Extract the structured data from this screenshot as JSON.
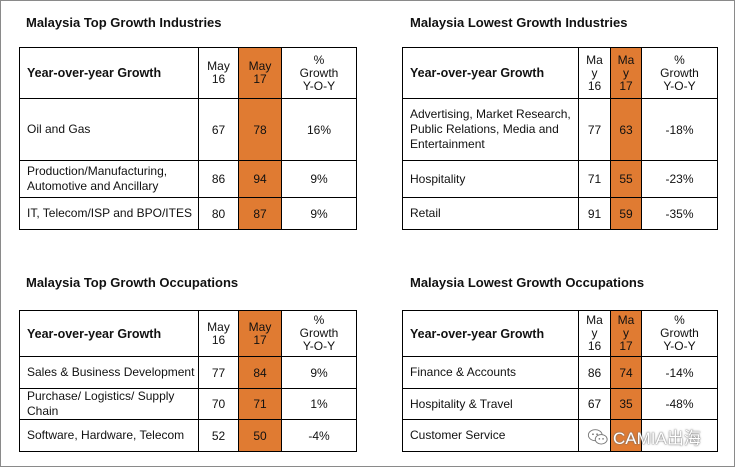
{
  "panels": [
    {
      "title": "Malaysia Top Growth Industries",
      "header": {
        "label": "Year-over-year Growth",
        "col1": "May\n16",
        "col2": "May\n17",
        "col3": "%\nGrowth\nY-O-Y"
      },
      "rows": [
        {
          "label": "Oil and Gas",
          "may16": "67",
          "may17": "78",
          "growth": "16%"
        },
        {
          "label": "Production/Manufacturing, Automotive and Ancillary",
          "may16": "86",
          "may17": "94",
          "growth": "9%"
        },
        {
          "label": "IT, Telecom/ISP and BPO/ITES",
          "may16": "80",
          "may17": "87",
          "growth": "9%"
        }
      ]
    },
    {
      "title": "Malaysia Lowest Growth Industries",
      "header": {
        "label": "Year-over-year Growth",
        "col1": "Ma\ny\n16",
        "col2": "Ma\ny\n17",
        "col3": "%\nGrowth\nY-O-Y"
      },
      "rows": [
        {
          "label": "Advertising, Market Research, Public Relations, Media and Entertainment",
          "may16": "77",
          "may17": "63",
          "growth": "-18%"
        },
        {
          "label": "Hospitality",
          "may16": "71",
          "may17": "55",
          "growth": "-23%"
        },
        {
          "label": "Retail",
          "may16": "91",
          "may17": "59",
          "growth": "-35%"
        }
      ]
    },
    {
      "title": "Malaysia Top Growth Occupations",
      "header": {
        "label": "Year-over-year Growth",
        "col1": "May\n16",
        "col2": "May\n17",
        "col3": "%\nGrowth\nY-O-Y"
      },
      "rows": [
        {
          "label": "Sales & Business Development",
          "may16": "77",
          "may17": "84",
          "growth": "9%"
        },
        {
          "label": "Purchase/ Logistics/ Supply Chain",
          "may16": "70",
          "may17": "71",
          "growth": "1%"
        },
        {
          "label": "Software, Hardware, Telecom",
          "may16": "52",
          "may17": "50",
          "growth": "-4%"
        }
      ]
    },
    {
      "title": "Malaysia Lowest Growth Occupations",
      "header": {
        "label": "Year-over-year Growth",
        "col1": "Ma\ny\n16",
        "col2": "Ma\ny\n17",
        "col3": "%\nGrowth\nY-O-Y"
      },
      "rows": [
        {
          "label": "Finance & Accounts",
          "may16": "86",
          "may17": "74",
          "growth": "-14%"
        },
        {
          "label": "Hospitality & Travel",
          "may16": "67",
          "may17": "35",
          "growth": "-48%"
        },
        {
          "label": "Customer Service",
          "may16": "7",
          "may17": "",
          "growth": ""
        }
      ]
    }
  ],
  "watermark": {
    "text": "CAMIA出海",
    "icon": "wechat-icon"
  },
  "colors": {
    "highlight": "#e07b32",
    "border": "#000000"
  }
}
